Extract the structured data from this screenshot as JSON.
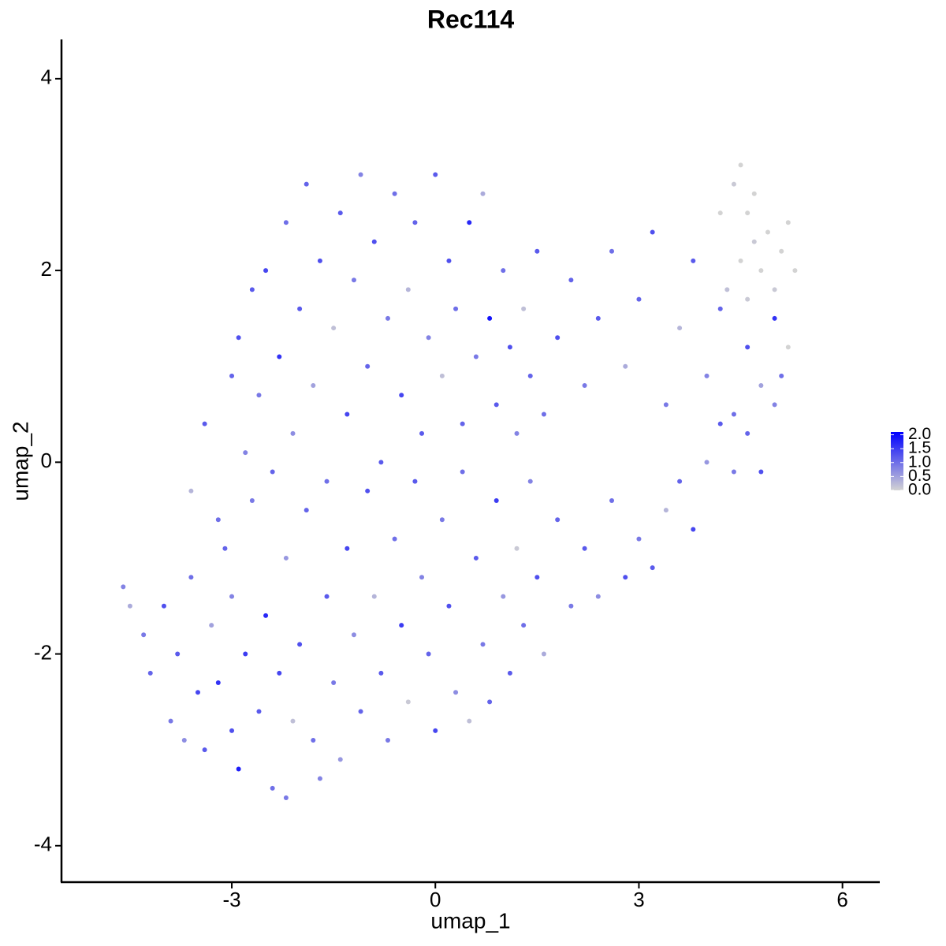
{
  "chart_data": {
    "type": "scatter",
    "title": "Rec114",
    "x_label": "umap_1",
    "y_label": "umap_2",
    "xlim": [
      -5.51,
      6.55
    ],
    "ylim": [
      -4.38,
      4.41
    ],
    "xticks": [
      -3,
      0,
      3,
      6
    ],
    "yticks": [
      -4,
      -2,
      0,
      2,
      4
    ],
    "grid": false,
    "low_color": "#d3d3d3",
    "high_color": "#0000ff",
    "colorbar_lim": [
      0,
      2.1
    ],
    "colorbar_ticks": [
      {
        "value": 0,
        "label": "0.0"
      },
      {
        "value": 0.5,
        "label": "0.5"
      },
      {
        "value": 1,
        "label": "1.0"
      },
      {
        "value": 1.5,
        "label": "1.5"
      },
      {
        "value": 2,
        "label": "2.0"
      }
    ],
    "legend_position": "right",
    "x": [
      -4.6,
      -4.5,
      -4.3,
      -4.2,
      -4.0,
      -3.9,
      -3.8,
      -3.7,
      -3.6,
      -3.5,
      -3.4,
      -3.3,
      -3.2,
      -3.1,
      -3.0,
      -3.0,
      -2.9,
      -2.8,
      -2.7,
      -2.6,
      -2.5,
      -2.4,
      -2.3,
      -2.2,
      -2.2,
      -2.1,
      -2.0,
      -1.9,
      -1.8,
      -1.7,
      -1.6,
      -1.5,
      -1.4,
      -1.3,
      -1.2,
      -1.1,
      -1.0,
      -0.9,
      -0.8,
      -0.7,
      -0.6,
      -0.5,
      -0.4,
      -0.3,
      -0.2,
      -0.1,
      0.0,
      0.1,
      0.2,
      0.3,
      0.4,
      0.5,
      0.6,
      0.7,
      0.8,
      0.9,
      1.0,
      1.1,
      1.2,
      1.3,
      1.4,
      1.5,
      1.6,
      1.8,
      2.0,
      2.2,
      2.4,
      2.6,
      2.8,
      3.0,
      3.2,
      3.4,
      3.6,
      3.8,
      4.0,
      4.2,
      4.4,
      4.6,
      4.8,
      5.0,
      5.1,
      -3.6,
      -3.4,
      -3.2,
      -3.0,
      -2.9,
      -2.8,
      -2.7,
      -2.6,
      -2.5,
      -2.4,
      -2.3,
      -2.2,
      -2.1,
      -2.0,
      -1.9,
      -1.8,
      -1.7,
      -1.6,
      -1.5,
      -1.4,
      -1.3,
      -1.2,
      -1.1,
      -1.0,
      -0.9,
      -0.8,
      -0.7,
      -0.6,
      -0.5,
      -0.4,
      -0.3,
      -0.2,
      -0.1,
      0.0,
      0.1,
      0.2,
      0.3,
      0.4,
      0.5,
      0.6,
      0.7,
      0.8,
      0.9,
      1.0,
      1.1,
      1.2,
      1.3,
      1.4,
      1.5,
      1.6,
      1.8,
      2.0,
      2.2,
      2.4,
      2.6,
      2.8,
      3.0,
      3.2,
      3.4,
      3.6,
      3.8,
      4.0,
      4.2,
      4.4,
      4.6,
      4.8,
      5.0,
      4.2,
      4.4,
      4.5,
      4.6,
      4.7,
      4.8,
      4.9,
      5.0,
      5.1,
      5.2,
      5.3,
      4.5,
      4.3,
      4.7,
      5.2,
      4.6
    ],
    "y": [
      -1.3,
      -1.5,
      -1.8,
      -2.2,
      -1.5,
      -2.7,
      -2.0,
      -2.9,
      -1.2,
      -2.4,
      -3.0,
      -1.7,
      -2.3,
      -0.9,
      -2.8,
      -1.4,
      -3.2,
      -2.0,
      -0.4,
      -2.6,
      -1.6,
      -3.4,
      -2.2,
      -1.0,
      -3.5,
      -2.7,
      -1.9,
      -0.5,
      -2.9,
      -3.3,
      -1.4,
      -2.3,
      -3.1,
      -0.9,
      -1.8,
      -2.6,
      -0.3,
      -1.4,
      -2.2,
      -2.9,
      -0.8,
      -1.7,
      -2.5,
      -0.2,
      -1.2,
      -2.0,
      -2.8,
      -0.6,
      -1.5,
      -2.4,
      -0.1,
      -2.7,
      -1.0,
      -1.9,
      -2.5,
      -0.4,
      -1.4,
      -2.2,
      -0.9,
      -1.7,
      -0.2,
      -1.2,
      -2.0,
      -0.6,
      -1.5,
      -0.9,
      -1.4,
      -0.4,
      -1.2,
      -0.8,
      -1.1,
      -0.5,
      -0.2,
      -0.7,
      0.0,
      0.4,
      -0.1,
      0.3,
      -0.1,
      0.6,
      0.9,
      -0.3,
      0.4,
      -0.6,
      0.9,
      1.3,
      0.1,
      1.8,
      0.7,
      2.0,
      -0.1,
      1.1,
      2.5,
      0.3,
      1.6,
      2.9,
      0.8,
      2.1,
      -0.2,
      1.4,
      2.6,
      0.5,
      1.9,
      3.0,
      1.0,
      2.3,
      0.0,
      1.5,
      2.8,
      0.7,
      1.8,
      2.5,
      0.3,
      1.3,
      3.0,
      0.9,
      2.1,
      1.6,
      0.4,
      2.5,
      1.1,
      2.8,
      1.5,
      0.6,
      2.0,
      1.2,
      0.3,
      1.6,
      0.9,
      2.2,
      0.5,
      1.3,
      1.9,
      0.8,
      1.5,
      2.2,
      1.0,
      1.7,
      2.4,
      0.6,
      1.4,
      2.1,
      0.9,
      1.6,
      0.5,
      1.2,
      0.8,
      1.5,
      2.6,
      2.9,
      3.1,
      2.6,
      2.3,
      2.0,
      2.4,
      1.8,
      2.2,
      2.5,
      2.0,
      2.1,
      1.8,
      2.8,
      1.2,
      1.7
    ],
    "values": [
      0.8,
      0.4,
      0.9,
      1.1,
      1.3,
      0.9,
      1.2,
      0.7,
      1.0,
      1.4,
      1.2,
      0.5,
      1.6,
      1.1,
      1.3,
      0.8,
      1.8,
      1.5,
      0.9,
      1.2,
      1.7,
      1.0,
      1.4,
      0.6,
      0.9,
      0.2,
      1.3,
      1.1,
      1.0,
      0.8,
      1.2,
      0.9,
      0.6,
      1.4,
      0.7,
      1.1,
      1.3,
      0.3,
      1.2,
      0.9,
      1.0,
      1.5,
      0.1,
      1.2,
      0.8,
      1.1,
      1.4,
      0.9,
      1.3,
      0.7,
      1.0,
      0.2,
      1.2,
      0.9,
      1.1,
      1.5,
      0.6,
      1.2,
      0.1,
      1.0,
      0.8,
      1.3,
      0.4,
      1.1,
      0.9,
      1.2,
      0.7,
      1.0,
      1.3,
      0.9,
      1.2,
      0.3,
      1.1,
      1.4,
      0.6,
      1.2,
      0.9,
      1.1,
      1.3,
      0.8,
      1.0,
      0.3,
      1.2,
      1.0,
      1.1,
      1.3,
      0.8,
      1.2,
      0.9,
      1.4,
      1.1,
      1.6,
      1.0,
      0.7,
      1.2,
      1.1,
      0.5,
      1.3,
      1.0,
      0.2,
      1.2,
      1.4,
      0.9,
      0.8,
      1.1,
      1.3,
      1.2,
      0.9,
      1.0,
      1.4,
      0.3,
      1.1,
      1.2,
      0.8,
      1.2,
      0.2,
      1.3,
      1.0,
      1.1,
      1.7,
      0.9,
      0.4,
      1.9,
      1.2,
      1.0,
      1.3,
      0.8,
      0.2,
      1.1,
      1.2,
      1.0,
      1.3,
      1.1,
      0.9,
      1.2,
      1.0,
      0.4,
      1.1,
      1.3,
      0.9,
      0.3,
      1.2,
      0.8,
      1.1,
      1.0,
      1.3,
      0.5,
      1.6,
      0.0,
      0.1,
      0.0,
      0.0,
      0.1,
      0.0,
      0.0,
      0.1,
      0.0,
      0.0,
      0.0,
      0.0,
      0.2,
      0.0,
      0.0,
      0.1
    ]
  }
}
